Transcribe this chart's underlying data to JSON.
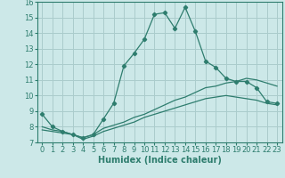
{
  "title": "",
  "xlabel": "Humidex (Indice chaleur)",
  "bg_color": "#cce8e8",
  "grid_color": "#aacccc",
  "line_color": "#2e7d6e",
  "xlim": [
    -0.5,
    23.5
  ],
  "ylim": [
    7,
    16
  ],
  "xticks": [
    0,
    1,
    2,
    3,
    4,
    5,
    6,
    7,
    8,
    9,
    10,
    11,
    12,
    13,
    14,
    15,
    16,
    17,
    18,
    19,
    20,
    21,
    22,
    23
  ],
  "yticks": [
    7,
    8,
    9,
    10,
    11,
    12,
    13,
    14,
    15,
    16
  ],
  "line1_x": [
    0,
    1,
    2,
    3,
    4,
    5,
    6,
    7,
    8,
    9,
    10,
    11,
    12,
    13,
    14,
    15,
    16,
    17,
    18,
    19,
    20,
    21,
    22,
    23
  ],
  "line1_y": [
    8.8,
    8.0,
    7.7,
    7.5,
    7.3,
    7.5,
    8.5,
    9.5,
    11.9,
    12.7,
    13.6,
    15.2,
    15.3,
    14.3,
    15.65,
    14.1,
    12.2,
    11.8,
    11.1,
    10.9,
    10.9,
    10.5,
    9.6,
    9.5
  ],
  "line2_x": [
    0,
    1,
    2,
    3,
    4,
    5,
    6,
    7,
    8,
    9,
    10,
    11,
    12,
    13,
    14,
    15,
    16,
    17,
    18,
    19,
    20,
    21,
    22,
    23
  ],
  "line2_y": [
    8.0,
    7.8,
    7.7,
    7.5,
    7.3,
    7.5,
    7.9,
    8.1,
    8.3,
    8.6,
    8.8,
    9.1,
    9.4,
    9.7,
    9.9,
    10.2,
    10.5,
    10.6,
    10.8,
    10.9,
    11.1,
    11.0,
    10.8,
    10.6
  ],
  "line3_x": [
    0,
    1,
    2,
    3,
    4,
    5,
    6,
    7,
    8,
    9,
    10,
    11,
    12,
    13,
    14,
    15,
    16,
    17,
    18,
    19,
    20,
    21,
    22,
    23
  ],
  "line3_y": [
    7.8,
    7.7,
    7.6,
    7.5,
    7.2,
    7.4,
    7.7,
    7.9,
    8.1,
    8.3,
    8.6,
    8.8,
    9.0,
    9.2,
    9.4,
    9.6,
    9.8,
    9.9,
    10.0,
    9.9,
    9.8,
    9.7,
    9.5,
    9.4
  ],
  "label_fontsize": 7,
  "tick_fontsize": 6
}
